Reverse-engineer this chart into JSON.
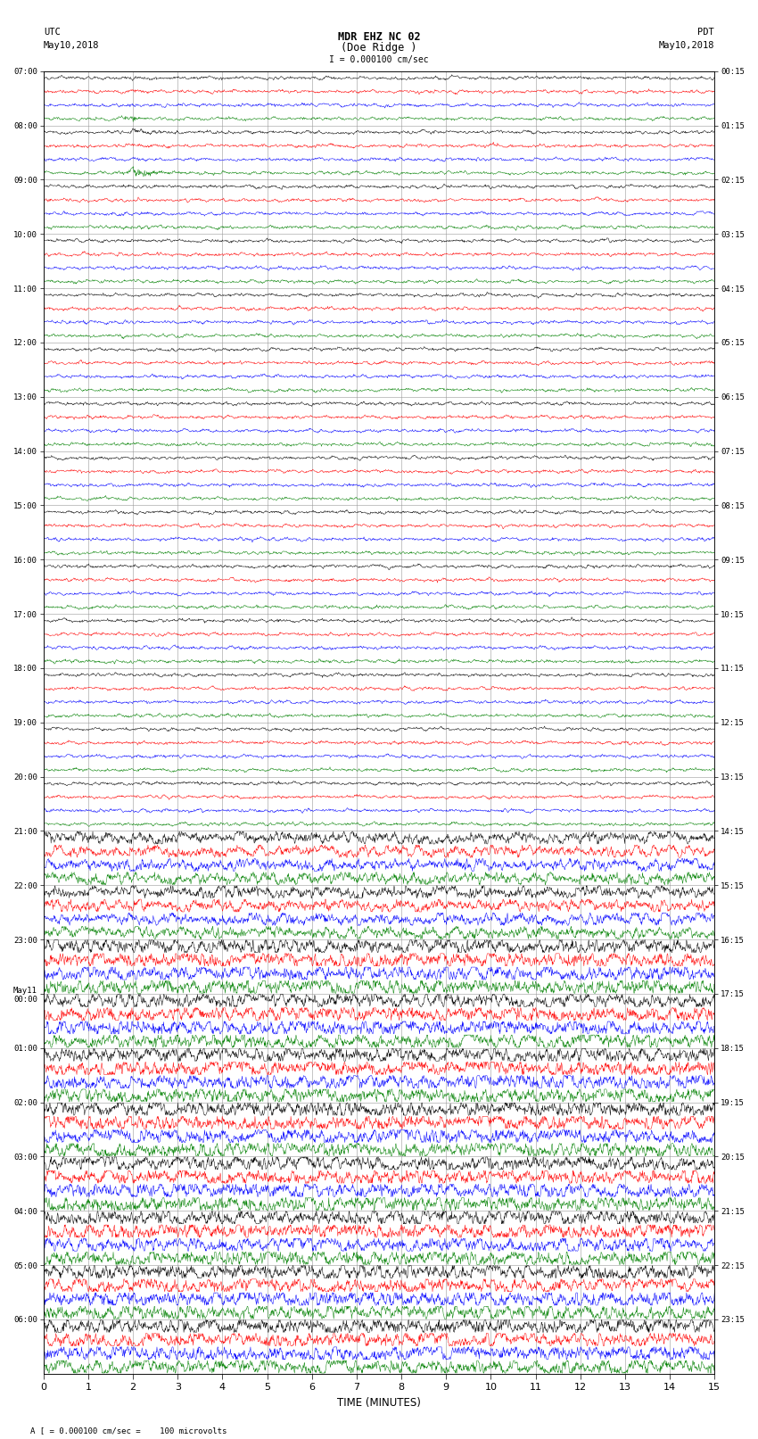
{
  "title_line1": "MDR EHZ NC 02",
  "title_line2": "(Doe Ridge )",
  "scale_label": "= 0.000100 cm/sec",
  "footer_label": "= 0.000100 cm/sec =    100 microvolts",
  "xlabel": "TIME (MINUTES)",
  "utc_times": [
    "07:00",
    "08:00",
    "09:00",
    "10:00",
    "11:00",
    "12:00",
    "13:00",
    "14:00",
    "15:00",
    "16:00",
    "17:00",
    "18:00",
    "19:00",
    "20:00",
    "21:00",
    "22:00",
    "23:00",
    "May11\n00:00",
    "01:00",
    "02:00",
    "03:00",
    "04:00",
    "05:00",
    "06:00"
  ],
  "pdt_times": [
    "00:15",
    "01:15",
    "02:15",
    "03:15",
    "04:15",
    "05:15",
    "06:15",
    "07:15",
    "08:15",
    "09:15",
    "10:15",
    "11:15",
    "12:15",
    "13:15",
    "14:15",
    "15:15",
    "16:15",
    "17:15",
    "18:15",
    "19:15",
    "20:15",
    "21:15",
    "22:15",
    "23:15"
  ],
  "colors": [
    "black",
    "red",
    "blue",
    "green"
  ],
  "n_traces_per_hour": 4,
  "n_hours": 24,
  "xmin": 0,
  "xmax": 15,
  "background_color": "white",
  "grid_color": "#999999"
}
